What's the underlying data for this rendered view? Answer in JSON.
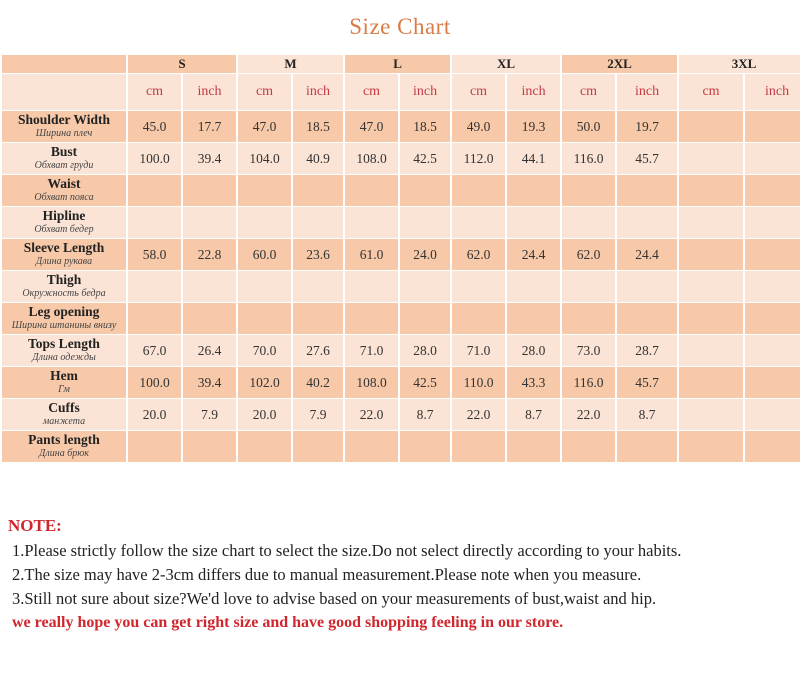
{
  "title": "Size  Chart",
  "sizes": [
    "S",
    "M",
    "L",
    "XL",
    "2XL",
    "3XL"
  ],
  "units": [
    "cm",
    "inch"
  ],
  "rows": [
    {
      "en": "Shoulder Width",
      "ru": "Ширина плеч",
      "values": [
        "45.0",
        "17.7",
        "47.0",
        "18.5",
        "47.0",
        "18.5",
        "49.0",
        "19.3",
        "50.0",
        "19.7",
        "",
        ""
      ]
    },
    {
      "en": "Bust",
      "ru": "Обхват груди",
      "values": [
        "100.0",
        "39.4",
        "104.0",
        "40.9",
        "108.0",
        "42.5",
        "112.0",
        "44.1",
        "116.0",
        "45.7",
        "",
        ""
      ]
    },
    {
      "en": "Waist",
      "ru": "Обхват пояса",
      "values": [
        "",
        "",
        "",
        "",
        "",
        "",
        "",
        "",
        "",
        "",
        "",
        ""
      ]
    },
    {
      "en": "Hipline",
      "ru": "Обхват бедер",
      "values": [
        "",
        "",
        "",
        "",
        "",
        "",
        "",
        "",
        "",
        "",
        "",
        ""
      ]
    },
    {
      "en": "Sleeve Length",
      "ru": "Длина рукава",
      "values": [
        "58.0",
        "22.8",
        "60.0",
        "23.6",
        "61.0",
        "24.0",
        "62.0",
        "24.4",
        "62.0",
        "24.4",
        "",
        ""
      ]
    },
    {
      "en": "Thigh",
      "ru": "Окружность бедра",
      "values": [
        "",
        "",
        "",
        "",
        "",
        "",
        "",
        "",
        "",
        "",
        "",
        ""
      ]
    },
    {
      "en": "Leg opening",
      "ru": "Ширина штанины внизу",
      "values": [
        "",
        "",
        "",
        "",
        "",
        "",
        "",
        "",
        "",
        "",
        "",
        ""
      ]
    },
    {
      "en": "Tops Length",
      "ru": "Длина одежды",
      "values": [
        "67.0",
        "26.4",
        "70.0",
        "27.6",
        "71.0",
        "28.0",
        "71.0",
        "28.0",
        "73.0",
        "28.7",
        "",
        ""
      ]
    },
    {
      "en": "Hem",
      "ru": "Гм",
      "values": [
        "100.0",
        "39.4",
        "102.0",
        "40.2",
        "108.0",
        "42.5",
        "110.0",
        "43.3",
        "116.0",
        "45.7",
        "",
        ""
      ]
    },
    {
      "en": "Cuffs",
      "ru": "манжета",
      "values": [
        "20.0",
        "7.9",
        "20.0",
        "7.9",
        "22.0",
        "8.7",
        "22.0",
        "8.7",
        "22.0",
        "8.7",
        "",
        ""
      ]
    },
    {
      "en": "Pants length",
      "ru": "Длина брюк",
      "values": [
        "",
        "",
        "",
        "",
        "",
        "",
        "",
        "",
        "",
        "",
        "",
        ""
      ]
    }
  ],
  "notes": {
    "heading": "NOTE:",
    "lines": [
      "1.Please strictly follow the size chart to select the size.Do not select directly according to your habits.",
      "2.The size may have 2-3cm differs due to manual measurement.Please note when you measure.",
      "3.Still not sure about size?We'd love to advise based on your measurements of bust,waist and hip."
    ],
    "closing": "we really hope you can get right size and have good shopping feeling in our store."
  },
  "colors": {
    "title": "#d97c45",
    "unit_text": "#c23b45",
    "note_red": "#d0262e",
    "cell_dark": "#f7c9a9",
    "cell_light": "#fbe4d5"
  }
}
